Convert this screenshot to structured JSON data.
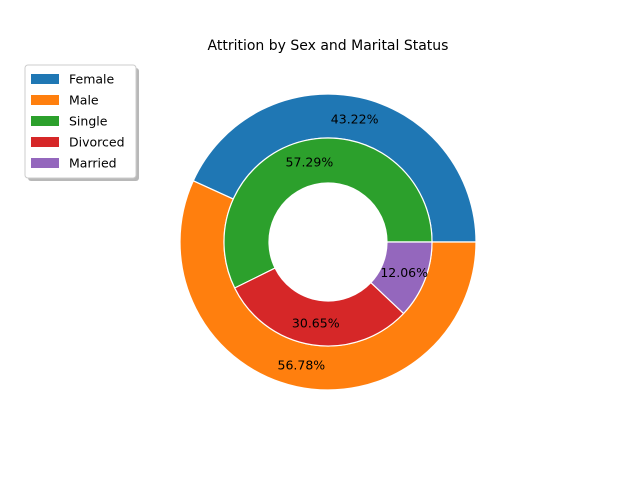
{
  "chart_data": {
    "type": "pie",
    "title": "Attrition by Sex and Marital Status",
    "rings": [
      {
        "name": "sex",
        "slices": [
          {
            "label": "Female",
            "value": 43.22,
            "label_text": "43.22%",
            "color": "#1f77b4"
          },
          {
            "label": "Male",
            "value": 56.78,
            "label_text": "56.78%",
            "color": "#ff7f0e"
          }
        ]
      },
      {
        "name": "marital_status",
        "slices": [
          {
            "label": "Single",
            "value": 57.29,
            "label_text": "57.29%",
            "color": "#2ca02c"
          },
          {
            "label": "Divorced",
            "value": 30.65,
            "label_text": "30.65%",
            "color": "#d62728"
          },
          {
            "label": "Married",
            "value": 12.06,
            "label_text": "12.06%",
            "color": "#9467bd"
          }
        ]
      }
    ],
    "legend": {
      "placement": "upper-left",
      "entries": [
        {
          "label": "Female",
          "color": "#1f77b4"
        },
        {
          "label": "Male",
          "color": "#ff7f0e"
        },
        {
          "label": "Single",
          "color": "#2ca02c"
        },
        {
          "label": "Divorced",
          "color": "#d62728"
        },
        {
          "label": "Married",
          "color": "#9467bd"
        }
      ]
    },
    "start_angle_deg": 0,
    "direction": "counterclockwise"
  }
}
